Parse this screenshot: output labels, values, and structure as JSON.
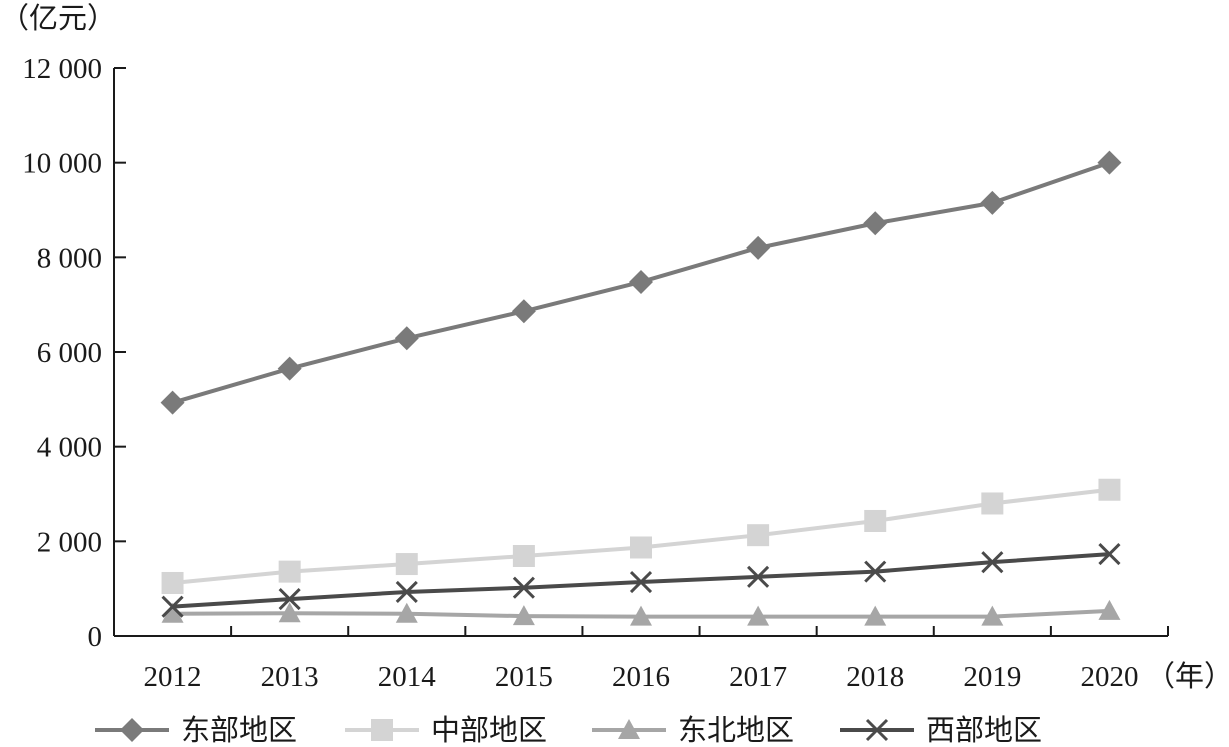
{
  "chart_data": {
    "type": "line",
    "ylabel": "（亿元）",
    "xlabel": "（年）",
    "categories": [
      "2012",
      "2013",
      "2014",
      "2015",
      "2016",
      "2017",
      "2018",
      "2019",
      "2020"
    ],
    "ylim": [
      0,
      12000
    ],
    "yticks": [
      0,
      2000,
      4000,
      6000,
      8000,
      10000,
      12000
    ],
    "ytick_labels": [
      "0",
      "2 000",
      "4 000",
      "6 000",
      "8 000",
      "10 000",
      "12 000"
    ],
    "grid": false,
    "legend_position": "bottom",
    "series": [
      {
        "name": "东部地区",
        "marker": "diamond",
        "color": "#7a7a7a",
        "values": [
          4930,
          5650,
          6290,
          6860,
          7480,
          8200,
          8720,
          9150,
          10000
        ]
      },
      {
        "name": "中部地区",
        "marker": "square",
        "color": "#d4d4d4",
        "values": [
          1120,
          1360,
          1520,
          1690,
          1870,
          2130,
          2430,
          2800,
          3090
        ]
      },
      {
        "name": "东北地区",
        "marker": "triangle",
        "color": "#a6a6a6",
        "values": [
          470,
          480,
          470,
          420,
          410,
          410,
          410,
          410,
          530
        ]
      },
      {
        "name": "西部地区",
        "marker": "x",
        "color": "#4a4a4a",
        "values": [
          620,
          780,
          930,
          1020,
          1140,
          1250,
          1360,
          1560,
          1730
        ]
      }
    ]
  }
}
